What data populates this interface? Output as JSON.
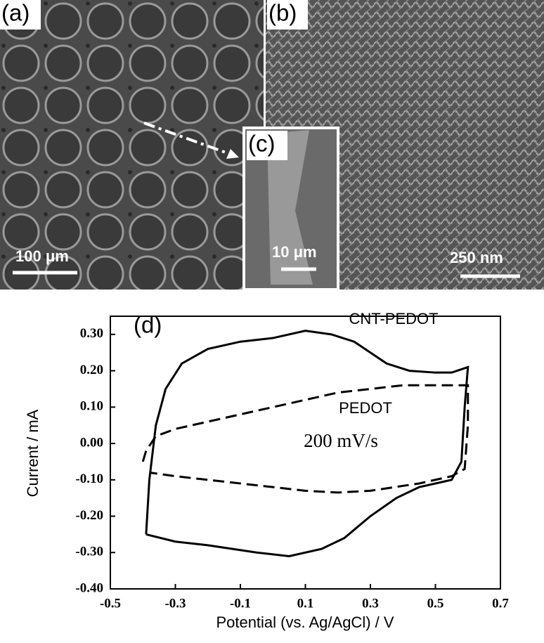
{
  "panels": [
    {
      "label": "(a)",
      "scale_bar": "100 μm"
    },
    {
      "label": "(b)",
      "scale_bar": "250 nm"
    },
    {
      "label": "(c)",
      "scale_bar": "10 μm"
    }
  ],
  "chart_data": {
    "type": "line",
    "panel_label": "(d)",
    "x_label": "Potential (vs. Ag/AgCl) / V",
    "y_label": "Current / mA",
    "annotation": "200 mV/s",
    "xlim": [
      -0.5,
      0.7
    ],
    "xticks": [
      -0.5,
      -0.3,
      -0.1,
      0.1,
      0.3,
      0.5,
      0.7
    ],
    "ylim": [
      -0.4,
      0.35
    ],
    "yticks": [
      {
        "value": 0.3,
        "label": "0.30"
      },
      {
        "value": 0.2,
        "label": "0.20"
      },
      {
        "value": 0.1,
        "label": "0.10"
      },
      {
        "value": 0,
        "label": "0.00"
      },
      {
        "value": -0.1,
        "label": "-0.10"
      },
      {
        "value": -0.2,
        "label": "-0.20"
      },
      {
        "value": -0.3,
        "label": "-0.30"
      },
      {
        "value": -0.4,
        "label": "-0.40"
      }
    ],
    "series": [
      {
        "name": "CNT-PEDOT",
        "color": "#000000",
        "dashed": false,
        "x": [
          -0.39,
          -0.38,
          -0.36,
          -0.33,
          -0.28,
          -0.2,
          -0.1,
          0.0,
          0.1,
          0.18,
          0.25,
          0.3,
          0.35,
          0.42,
          0.5,
          0.55,
          0.6,
          0.59,
          0.58,
          0.55,
          0.45,
          0.38,
          0.3,
          0.22,
          0.15,
          0.05,
          -0.05,
          -0.2,
          -0.3,
          -0.39
        ],
        "values": [
          -0.25,
          -0.1,
          0.05,
          0.15,
          0.22,
          0.26,
          0.28,
          0.29,
          0.31,
          0.3,
          0.28,
          0.25,
          0.22,
          0.2,
          0.195,
          0.195,
          0.21,
          0.1,
          -0.05,
          -0.1,
          -0.12,
          -0.15,
          -0.2,
          -0.26,
          -0.29,
          -0.31,
          -0.3,
          -0.28,
          -0.27,
          -0.25
        ]
      },
      {
        "name": "PEDOT",
        "color": "#000000",
        "dashed": true,
        "x": [
          -0.4,
          -0.39,
          -0.36,
          -0.3,
          -0.2,
          -0.1,
          0.0,
          0.1,
          0.2,
          0.3,
          0.4,
          0.5,
          0.6,
          0.6,
          0.59,
          0.55,
          0.45,
          0.3,
          0.2,
          0.1,
          0.0,
          -0.2,
          -0.3,
          -0.38
        ],
        "values": [
          -0.05,
          -0.02,
          0.02,
          0.04,
          0.06,
          0.08,
          0.1,
          0.12,
          0.14,
          0.15,
          0.16,
          0.16,
          0.16,
          0.05,
          -0.07,
          -0.09,
          -0.11,
          -0.13,
          -0.135,
          -0.13,
          -0.12,
          -0.1,
          -0.09,
          -0.08
        ]
      }
    ]
  }
}
